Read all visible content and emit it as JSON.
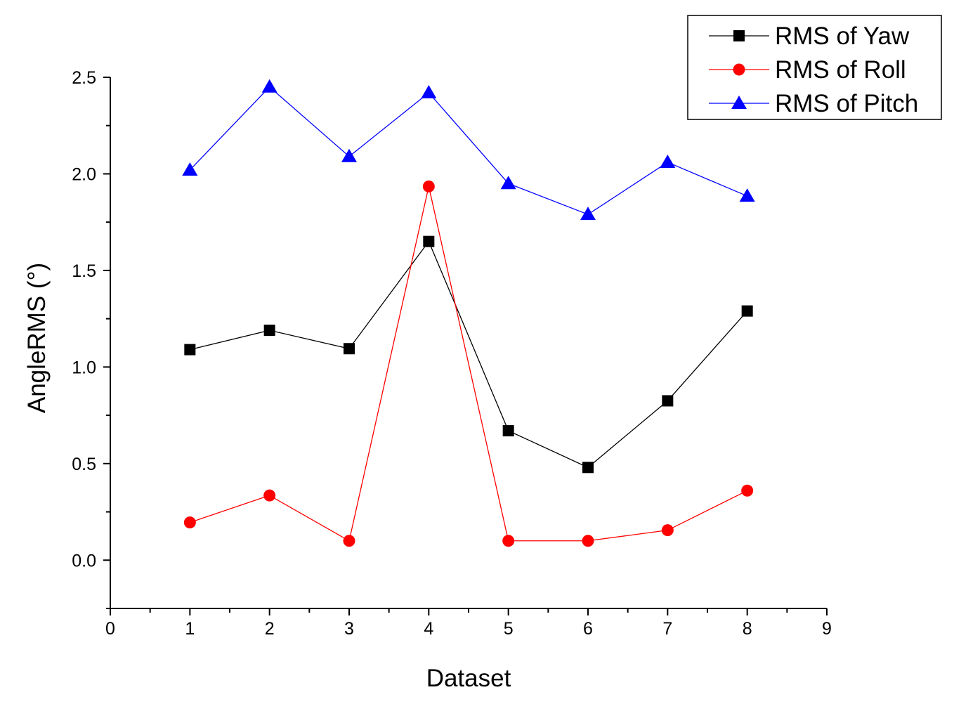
{
  "chart_data": {
    "type": "line",
    "title": "",
    "xlabel": "Dataset",
    "ylabel": "AngleRMS (°)",
    "xlim": [
      0,
      9
    ],
    "ylim": [
      -0.25,
      2.5
    ],
    "x_ticks": [
      0,
      1,
      2,
      3,
      4,
      5,
      6,
      7,
      8,
      9
    ],
    "x_tick_labels": [
      "0",
      "1",
      "2",
      "3",
      "4",
      "5",
      "6",
      "7",
      "8",
      "9"
    ],
    "y_ticks": [
      0.0,
      0.5,
      1.0,
      1.5,
      2.0,
      2.5
    ],
    "y_tick_labels": [
      "0.0",
      "0.5",
      "1.0",
      "1.5",
      "2.0",
      "2.5"
    ],
    "grid": false,
    "legend_position": "top-right",
    "x": [
      1,
      2,
      3,
      4,
      5,
      6,
      7,
      8
    ],
    "series": [
      {
        "name": "RMS of Yaw",
        "color": "#000000",
        "marker": "square",
        "values": [
          1.09,
          1.19,
          1.095,
          1.65,
          0.67,
          0.48,
          0.825,
          1.29
        ]
      },
      {
        "name": "RMS of Roll",
        "color": "#ff0000",
        "marker": "circle",
        "values": [
          0.195,
          0.335,
          0.1,
          1.935,
          0.1,
          0.1,
          0.155,
          0.36
        ]
      },
      {
        "name": "RMS of Pitch",
        "color": "#0000ff",
        "marker": "triangle",
        "values": [
          2.02,
          2.45,
          2.09,
          2.42,
          1.95,
          1.79,
          2.06,
          1.885
        ]
      }
    ]
  }
}
